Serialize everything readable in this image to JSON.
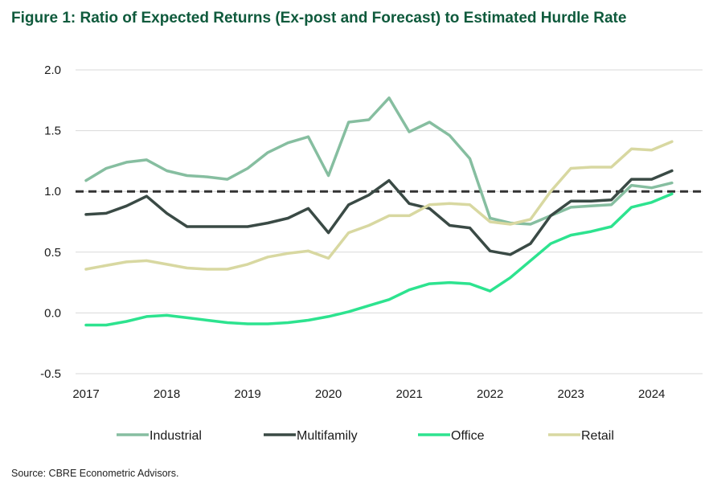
{
  "title": "Figure 1: Ratio of Expected Returns (Ex-post and Forecast) to Estimated Hurdle Rate",
  "source": "Source: CBRE Econometric Advisors.",
  "chart_data": {
    "type": "line",
    "title": "Figure 1: Ratio of Expected Returns (Ex-post and Forecast) to Estimated Hurdle Rate",
    "xlabel": "",
    "ylabel": "",
    "xlim": [
      2017,
      2024.5
    ],
    "ylim": [
      -0.5,
      2.0
    ],
    "y_ticks": [
      -0.5,
      0.0,
      0.5,
      1.0,
      1.5,
      2.0
    ],
    "y_tick_labels": [
      "-0.5",
      "0.0",
      "0.5",
      "1.0",
      "1.5",
      "2.0"
    ],
    "x_ticks": [
      2017,
      2018,
      2019,
      2020,
      2021,
      2022,
      2023,
      2024
    ],
    "x_tick_labels": [
      "2017",
      "2018",
      "2019",
      "2020",
      "2021",
      "2022",
      "2023",
      "2024"
    ],
    "grid": "horizontal",
    "legend_position": "bottom",
    "reference_line": {
      "y": 1.0,
      "style": "dashed",
      "color": "#333333"
    },
    "x": [
      2017.0,
      2017.25,
      2017.5,
      2017.75,
      2018.0,
      2018.25,
      2018.5,
      2018.75,
      2019.0,
      2019.25,
      2019.5,
      2019.75,
      2020.0,
      2020.25,
      2020.5,
      2020.75,
      2021.0,
      2021.25,
      2021.5,
      2021.75,
      2022.0,
      2022.25,
      2022.5,
      2022.75,
      2023.0,
      2023.25,
      2023.5,
      2023.75,
      2024.0,
      2024.25
    ],
    "series": [
      {
        "name": "Industrial",
        "color": "#86bea0",
        "values": [
          1.09,
          1.19,
          1.24,
          1.26,
          1.17,
          1.13,
          1.12,
          1.1,
          1.19,
          1.32,
          1.4,
          1.45,
          1.13,
          1.57,
          1.59,
          1.77,
          1.49,
          1.57,
          1.46,
          1.27,
          0.78,
          0.74,
          0.73,
          0.8,
          0.87,
          0.88,
          0.89,
          1.05,
          1.03,
          1.07
        ]
      },
      {
        "name": "Multifamily",
        "color": "#3a4a45",
        "values": [
          0.81,
          0.82,
          0.88,
          0.96,
          0.82,
          0.71,
          0.71,
          0.71,
          0.71,
          0.74,
          0.78,
          0.86,
          0.66,
          0.89,
          0.97,
          1.09,
          0.9,
          0.86,
          0.72,
          0.7,
          0.51,
          0.48,
          0.57,
          0.8,
          0.92,
          0.92,
          0.93,
          1.1,
          1.1,
          1.17
        ]
      },
      {
        "name": "Office",
        "color": "#2de38f",
        "values": [
          -0.1,
          -0.1,
          -0.07,
          -0.03,
          -0.02,
          -0.04,
          -0.06,
          -0.08,
          -0.09,
          -0.09,
          -0.08,
          -0.06,
          -0.03,
          0.01,
          0.06,
          0.11,
          0.19,
          0.24,
          0.25,
          0.24,
          0.18,
          0.29,
          0.43,
          0.57,
          0.64,
          0.67,
          0.71,
          0.87,
          0.91,
          0.98
        ]
      },
      {
        "name": "Retail",
        "color": "#d8d8a1",
        "values": [
          0.36,
          0.39,
          0.42,
          0.43,
          0.4,
          0.37,
          0.36,
          0.36,
          0.4,
          0.46,
          0.49,
          0.51,
          0.45,
          0.66,
          0.72,
          0.8,
          0.8,
          0.89,
          0.9,
          0.89,
          0.75,
          0.73,
          0.77,
          1.0,
          1.19,
          1.2,
          1.2,
          1.35,
          1.34,
          1.41
        ]
      }
    ]
  }
}
